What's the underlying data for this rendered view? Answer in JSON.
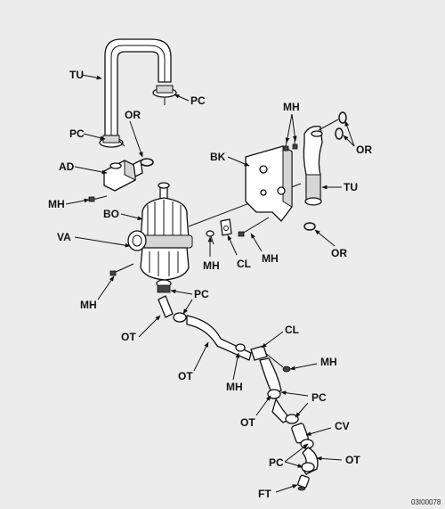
{
  "reference_id": "03I00078",
  "callouts": {
    "tu_top": "TU",
    "pc_top": "PC",
    "or_left": "OR",
    "pc_left": "PC",
    "ad": "AD",
    "mh_left_upper": "MH",
    "bo": "BO",
    "va": "VA",
    "mh_left_lower": "MH",
    "pc_mid": "PC",
    "ot_left": "OT",
    "ot_mid": "OT",
    "mh_pair": "MH",
    "or_right_top": "OR",
    "bk": "BK",
    "tu_right": "TU",
    "or_right_bottom": "OR",
    "mh_center": "MH",
    "cl_center": "CL",
    "mh_center_right": "MH",
    "cl_lower": "CL",
    "mh_lower_right": "MH",
    "mh_lower_mid": "MH",
    "pc_lower1": "PC",
    "ot_lower1": "OT",
    "cv": "CV",
    "pc_lower2": "PC",
    "ot_lower2": "OT",
    "ft": "FT"
  }
}
